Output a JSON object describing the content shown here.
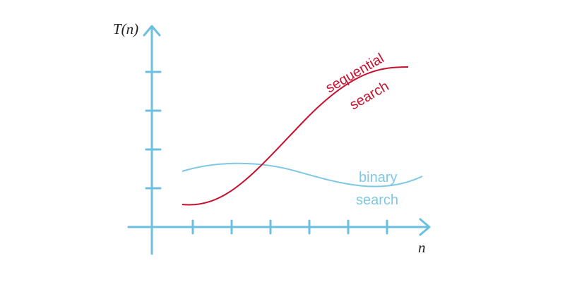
{
  "axes": {
    "y_label": "T(n)",
    "x_label": "n"
  },
  "curves": [
    {
      "label_lines": [
        "sequential",
        "search"
      ]
    },
    {
      "label_lines": [
        "binary",
        "search"
      ]
    }
  ]
}
